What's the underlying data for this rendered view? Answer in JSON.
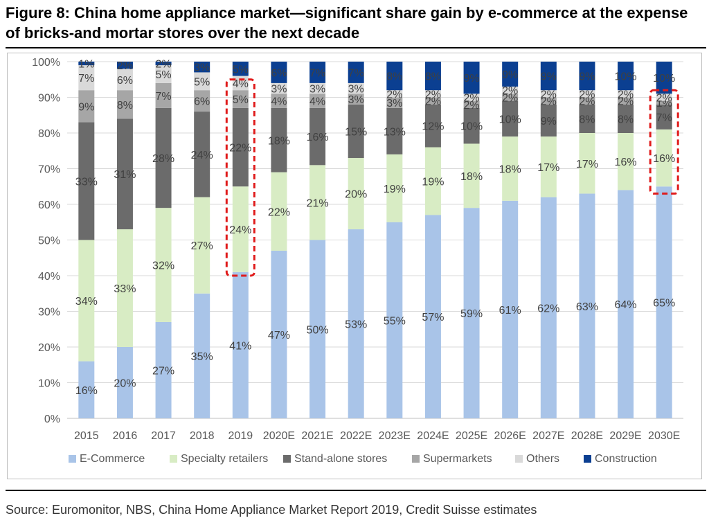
{
  "title": "Figure 8: China home appliance market—significant share gain by e-commerce at the expense of bricks-and mortar stores over the next decade",
  "source": "Source: Euromonitor, NBS, China Home Appliance Market Report 2019, Credit Suisse estimates",
  "chart_data": {
    "type": "bar",
    "stacked": true,
    "categories": [
      "2015",
      "2016",
      "2017",
      "2018",
      "2019",
      "2020E",
      "2021E",
      "2022E",
      "2023E",
      "2024E",
      "2025E",
      "2026E",
      "2027E",
      "2028E",
      "2029E",
      "2030E"
    ],
    "series": [
      {
        "name": "E-Commerce",
        "color": "#a9c4e8",
        "values": [
          16,
          20,
          27,
          35,
          41,
          47,
          50,
          53,
          55,
          57,
          59,
          61,
          62,
          63,
          64,
          65
        ]
      },
      {
        "name": "Specialty retailers",
        "color": "#d8ecc4",
        "values": [
          34,
          33,
          32,
          27,
          24,
          22,
          21,
          20,
          19,
          19,
          18,
          18,
          17,
          17,
          16,
          16
        ]
      },
      {
        "name": "Stand-alone stores",
        "color": "#6b6b6b",
        "values": [
          33,
          31,
          28,
          24,
          22,
          18,
          16,
          15,
          13,
          12,
          10,
          10,
          9,
          8,
          8,
          7
        ]
      },
      {
        "name": "Supermarkets",
        "color": "#a6a6a6",
        "values": [
          9,
          8,
          7,
          6,
          5,
          4,
          4,
          3,
          3,
          2,
          2,
          2,
          2,
          2,
          2,
          1
        ]
      },
      {
        "name": "Others",
        "color": "#d9d9d9",
        "values": [
          7,
          6,
          5,
          5,
          4,
          3,
          3,
          3,
          2,
          2,
          2,
          2,
          2,
          2,
          2,
          2
        ]
      },
      {
        "name": "Construction",
        "color": "#0b3f91",
        "values": [
          1,
          2,
          2,
          3,
          5,
          6,
          7,
          7,
          8,
          8,
          9,
          9,
          9,
          9,
          10,
          10
        ]
      }
    ],
    "value_format": "{v}%",
    "ylim": [
      0,
      100
    ],
    "yticks": [
      "0%",
      "10%",
      "20%",
      "30%",
      "40%",
      "50%",
      "60%",
      "70%",
      "80%",
      "90%",
      "100%"
    ],
    "grid": true,
    "legend": "bottom",
    "highlights": [
      {
        "category": "2019",
        "range": [
          40,
          95
        ],
        "color": "#e01b1b"
      },
      {
        "category": "2030E",
        "range": [
          63,
          92
        ],
        "color": "#e01b1b"
      }
    ]
  }
}
